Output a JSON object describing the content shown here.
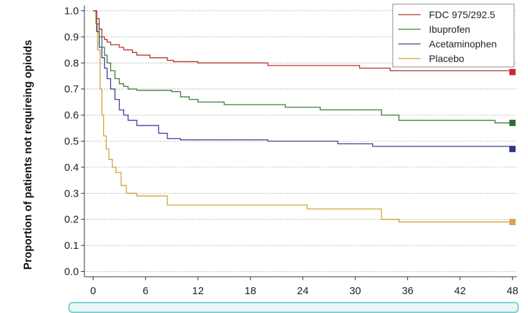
{
  "chart_data": {
    "type": "line",
    "step": true,
    "xlabel": "",
    "ylabel": "Proportion of patients not requireing opioids",
    "xlim": [
      -1,
      48.5
    ],
    "ylim": [
      -0.02,
      1.02
    ],
    "xticks": [
      0,
      6,
      12,
      18,
      24,
      30,
      36,
      42,
      48
    ],
    "yticks": [
      0.0,
      0.1,
      0.2,
      0.3,
      0.4,
      0.5,
      0.6,
      0.7,
      0.8,
      0.9,
      1.0
    ],
    "ytick_labels": [
      "0.0",
      "0.1",
      "0.2",
      "0.3",
      "0.4",
      "0.5",
      "0.6",
      "0.7",
      "0.8",
      "0.9",
      "1.0"
    ],
    "grid": "horizontal-dotted",
    "legend_position": "top-right",
    "series": [
      {
        "name": "FDC 975/292.5",
        "color": "#b03030",
        "marker_color": "#c8283c",
        "x": [
          0,
          0.4,
          0.7,
          1.0,
          1.3,
          1.6,
          2.0,
          3.0,
          3.5,
          4.5,
          5.0,
          5.5,
          6.5,
          7.5,
          8.5,
          9.2,
          12.0,
          20.0,
          27.5,
          30.5,
          34.0,
          48.0
        ],
        "y": [
          1.0,
          0.97,
          0.93,
          0.9,
          0.89,
          0.88,
          0.87,
          0.86,
          0.85,
          0.84,
          0.83,
          0.83,
          0.82,
          0.82,
          0.81,
          0.805,
          0.8,
          0.79,
          0.79,
          0.78,
          0.77,
          0.765
        ]
      },
      {
        "name": "Ibuprofen",
        "color": "#3a7a3a",
        "marker_color": "#2e6b35",
        "x": [
          0,
          0.4,
          0.7,
          1.0,
          1.3,
          1.6,
          2.0,
          2.5,
          3.0,
          3.5,
          4.0,
          5.0,
          9.0,
          10.0,
          11.0,
          12.0,
          15.0,
          17.0,
          22.0,
          26.0,
          28.5,
          33.0,
          35.0,
          46.0,
          48.0
        ],
        "y": [
          1.0,
          0.95,
          0.9,
          0.86,
          0.83,
          0.8,
          0.77,
          0.74,
          0.72,
          0.71,
          0.7,
          0.695,
          0.69,
          0.67,
          0.66,
          0.65,
          0.64,
          0.64,
          0.63,
          0.62,
          0.62,
          0.6,
          0.58,
          0.57,
          0.57
        ]
      },
      {
        "name": "Acetaminophen",
        "color": "#3a3a9a",
        "marker_color": "#2c3590",
        "x": [
          0,
          0.4,
          0.7,
          1.0,
          1.3,
          1.6,
          2.0,
          2.5,
          3.0,
          3.5,
          4.0,
          5.0,
          7.5,
          8.5,
          10.0,
          20.0,
          28.0,
          32.0,
          48.0
        ],
        "y": [
          1.0,
          0.92,
          0.86,
          0.82,
          0.78,
          0.74,
          0.7,
          0.66,
          0.62,
          0.6,
          0.58,
          0.56,
          0.53,
          0.51,
          0.505,
          0.5,
          0.49,
          0.48,
          0.47
        ]
      },
      {
        "name": "Placebo",
        "color": "#d4a030",
        "marker_color": "#dca050",
        "x": [
          0,
          0.3,
          0.5,
          0.8,
          1.0,
          1.2,
          1.5,
          1.8,
          2.2,
          2.6,
          3.2,
          3.8,
          5.0,
          8.5,
          24.5,
          33.0,
          35.0,
          48.0
        ],
        "y": [
          1.0,
          0.95,
          0.85,
          0.7,
          0.6,
          0.52,
          0.47,
          0.43,
          0.4,
          0.38,
          0.33,
          0.3,
          0.29,
          0.255,
          0.24,
          0.2,
          0.19,
          0.19
        ]
      }
    ]
  }
}
